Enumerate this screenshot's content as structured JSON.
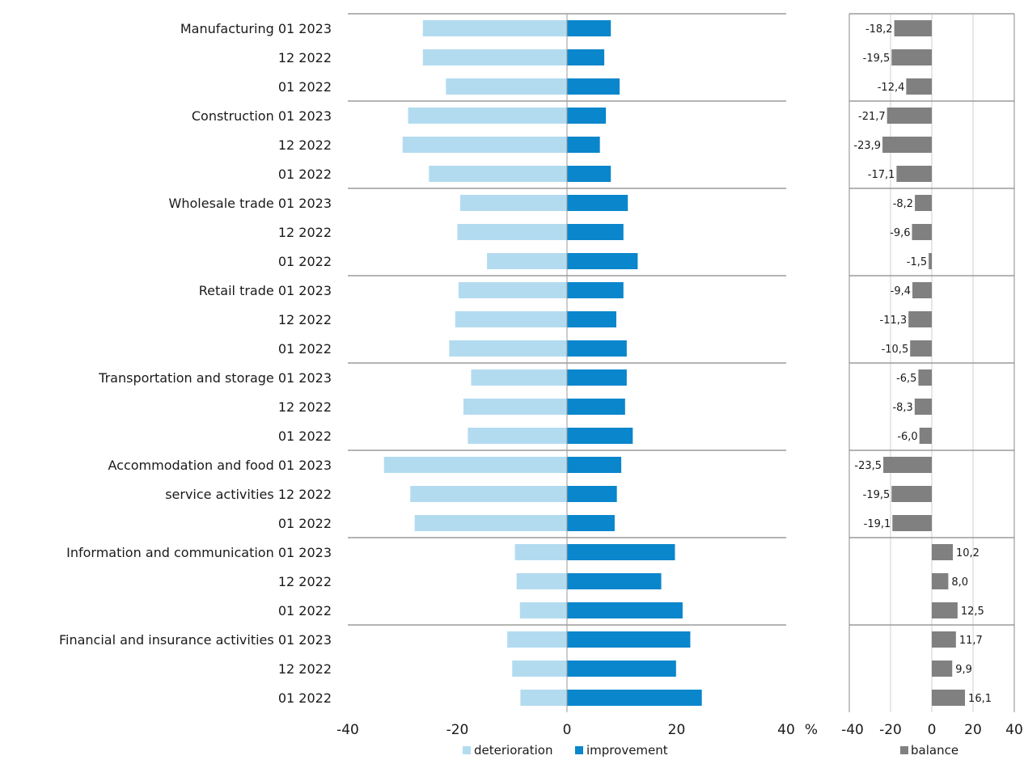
{
  "chart_data": [
    {
      "type": "bar",
      "orientation": "horizontal",
      "stacked": "diverging",
      "groups": [
        "Manufacturing",
        "Construction",
        "Wholesale trade",
        "Retail trade",
        "Transportation and storage",
        "Accommodation and food service activities",
        "Information and communication",
        "Financial and insurance activities"
      ],
      "group_label_lines": [
        [
          "Manufacturing"
        ],
        [
          "Construction"
        ],
        [
          "Wholesale trade"
        ],
        [
          "Retail trade"
        ],
        [
          "Transportation and storage"
        ],
        [
          "Accommodation and food",
          "service activities"
        ],
        [
          "Information and communication"
        ],
        [
          "Financial and insurance activities"
        ]
      ],
      "periods": [
        "01 2023",
        "12 2022",
        "01 2022"
      ],
      "series": [
        {
          "name": "deterioration",
          "color": "#b3dbf0",
          "values": [
            -26.3,
            -26.3,
            -22.1,
            -29.0,
            -30.0,
            -25.2,
            -19.5,
            -20.0,
            -14.6,
            -19.8,
            -20.4,
            -21.5,
            -17.5,
            -18.9,
            -18.1,
            -33.4,
            -28.6,
            -27.8,
            -9.5,
            -9.2,
            -8.6,
            -10.9,
            -10.0,
            -8.5
          ]
        },
        {
          "name": "improvement",
          "color": "#0a86cc",
          "values": [
            8.0,
            6.8,
            9.6,
            7.1,
            6.0,
            8.0,
            11.1,
            10.3,
            12.9,
            10.3,
            9.0,
            10.9,
            10.9,
            10.6,
            12.0,
            9.9,
            9.1,
            8.7,
            19.7,
            17.2,
            21.1,
            22.5,
            19.9,
            24.6
          ]
        }
      ],
      "xlim": [
        -40,
        40
      ],
      "xticks": [
        -40,
        -20,
        0,
        20,
        40
      ],
      "xlabel": "%",
      "legend": [
        "deterioration",
        "improvement"
      ],
      "legend_position": "bottom"
    },
    {
      "type": "bar",
      "orientation": "horizontal",
      "series": [
        {
          "name": "balance",
          "color": "#808080",
          "values": [
            -18.2,
            -19.5,
            -12.4,
            -21.7,
            -23.9,
            -17.1,
            -8.2,
            -9.6,
            -1.5,
            -9.4,
            -11.3,
            -10.5,
            -6.5,
            -8.3,
            -6.0,
            -23.5,
            -19.5,
            -19.1,
            10.2,
            8.0,
            12.5,
            11.7,
            9.9,
            16.1
          ],
          "labels": [
            "-18,2",
            "-19,5",
            "-12,4",
            "-21,7",
            "-23,9",
            "-17,1",
            "-8,2",
            "-9,6",
            "-1,5",
            "-9,4",
            "-11,3",
            "-10,5",
            "-6,5",
            "-8,3",
            "-6,0",
            "-23,5",
            "-19,5",
            "-19,1",
            "10,2",
            "8,0",
            "12,5",
            "11,7",
            "9,9",
            "16,1"
          ]
        }
      ],
      "xlim": [
        -40,
        40
      ],
      "xticks": [
        -40,
        -20,
        0,
        20,
        40
      ],
      "grid": true,
      "legend": [
        "balance"
      ],
      "legend_position": "bottom"
    }
  ]
}
